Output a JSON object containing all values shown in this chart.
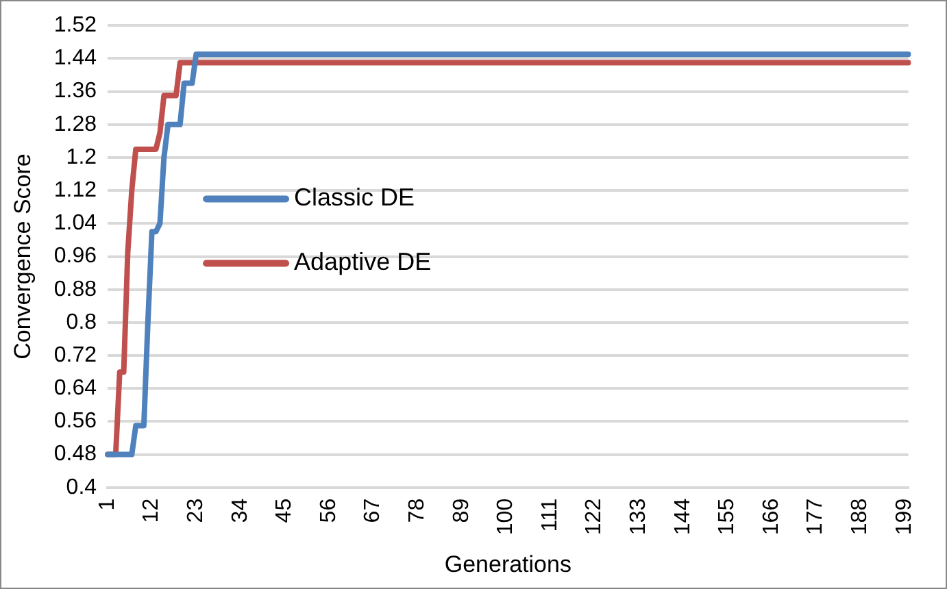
{
  "chart_data": {
    "type": "line",
    "xlabel": "Generations",
    "ylabel": "Convergence Score",
    "categories": [
      "1",
      null,
      null,
      null,
      null,
      null,
      null,
      null,
      null,
      null,
      null,
      "12",
      null,
      null,
      null,
      null,
      null,
      null,
      null,
      null,
      null,
      null,
      "23",
      null,
      null,
      null,
      null,
      null,
      null,
      null,
      null,
      null,
      null,
      "34",
      null,
      null,
      null,
      null,
      null,
      null,
      null,
      null,
      null,
      null,
      "45",
      null,
      null,
      null,
      null,
      null,
      null,
      null,
      null,
      null,
      null,
      "56",
      null,
      null,
      null,
      null,
      null,
      null,
      null,
      null,
      null,
      null,
      "67",
      null,
      null,
      null,
      null,
      null,
      null,
      null,
      null,
      null,
      null,
      "78",
      null,
      null,
      null,
      null,
      null,
      null,
      null,
      null,
      null,
      null,
      "89",
      null,
      null,
      null,
      null,
      null,
      null,
      null,
      null,
      null,
      null,
      "100",
      null,
      null,
      null,
      null,
      null,
      null,
      null,
      null,
      null,
      null,
      "111",
      null,
      null,
      null,
      null,
      null,
      null,
      null,
      null,
      null,
      null,
      "122",
      null,
      null,
      null,
      null,
      null,
      null,
      null,
      null,
      null,
      null,
      "133",
      null,
      null,
      null,
      null,
      null,
      null,
      null,
      null,
      null,
      null,
      "144",
      null,
      null,
      null,
      null,
      null,
      null,
      null,
      null,
      null,
      null,
      "155",
      null,
      null,
      null,
      null,
      null,
      null,
      null,
      null,
      null,
      null,
      "166",
      null,
      null,
      null,
      null,
      null,
      null,
      null,
      null,
      null,
      null,
      "177",
      null,
      null,
      null,
      null,
      null,
      null,
      null,
      null,
      null,
      null,
      "188",
      null,
      null,
      null,
      null,
      null,
      null,
      null,
      null,
      null,
      null,
      "199",
      null
    ],
    "series": [
      {
        "name": "Classic DE",
        "color": "#4f81bd",
        "values": [
          0.48,
          0.48,
          0.48,
          0.48,
          0.48,
          0.48,
          0.48,
          0.55,
          0.55,
          0.55,
          0.8,
          1.02,
          1.02,
          1.04,
          1.2,
          1.28,
          1.28,
          1.28,
          1.28,
          1.38,
          1.38,
          1.38,
          1.45,
          1.45,
          1.45,
          1.45,
          1.45,
          1.45,
          1.45,
          1.45,
          1.45,
          1.45,
          1.45,
          1.45,
          1.45,
          1.45,
          1.45,
          1.45,
          1.45,
          1.45,
          1.45,
          1.45,
          1.45,
          1.45,
          1.45,
          1.45,
          1.45,
          1.45,
          1.45,
          1.45,
          1.45,
          1.45,
          1.45,
          1.45,
          1.45,
          1.45,
          1.45,
          1.45,
          1.45,
          1.45,
          1.45,
          1.45,
          1.45,
          1.45,
          1.45,
          1.45,
          1.45,
          1.45,
          1.45,
          1.45,
          1.45,
          1.45,
          1.45,
          1.45,
          1.45,
          1.45,
          1.45,
          1.45,
          1.45,
          1.45,
          1.45,
          1.45,
          1.45,
          1.45,
          1.45,
          1.45,
          1.45,
          1.45,
          1.45,
          1.45,
          1.45,
          1.45,
          1.45,
          1.45,
          1.45,
          1.45,
          1.45,
          1.45,
          1.45,
          1.45,
          1.45,
          1.45,
          1.45,
          1.45,
          1.45,
          1.45,
          1.45,
          1.45,
          1.45,
          1.45,
          1.45,
          1.45,
          1.45,
          1.45,
          1.45,
          1.45,
          1.45,
          1.45,
          1.45,
          1.45,
          1.45,
          1.45,
          1.45,
          1.45,
          1.45,
          1.45,
          1.45,
          1.45,
          1.45,
          1.45,
          1.45,
          1.45,
          1.45,
          1.45,
          1.45,
          1.45,
          1.45,
          1.45,
          1.45,
          1.45,
          1.45,
          1.45,
          1.45,
          1.45,
          1.45,
          1.45,
          1.45,
          1.45,
          1.45,
          1.45,
          1.45,
          1.45,
          1.45,
          1.45,
          1.45,
          1.45,
          1.45,
          1.45,
          1.45,
          1.45,
          1.45,
          1.45,
          1.45,
          1.45,
          1.45,
          1.45,
          1.45,
          1.45,
          1.45,
          1.45,
          1.45,
          1.45,
          1.45,
          1.45,
          1.45,
          1.45,
          1.45,
          1.45,
          1.45,
          1.45,
          1.45,
          1.45,
          1.45,
          1.45,
          1.45,
          1.45,
          1.45,
          1.45,
          1.45,
          1.45,
          1.45,
          1.45,
          1.45,
          1.45,
          1.45,
          1.45,
          1.45,
          1.45,
          1.45,
          1.45
        ]
      },
      {
        "name": "Adaptive DE",
        "color": "#c0504d",
        "values": [
          0.48,
          0.48,
          0.48,
          0.68,
          0.68,
          0.97,
          1.12,
          1.22,
          1.22,
          1.22,
          1.22,
          1.22,
          1.22,
          1.26,
          1.35,
          1.35,
          1.35,
          1.35,
          1.43,
          1.43,
          1.43,
          1.43,
          1.43,
          1.43,
          1.43,
          1.43,
          1.43,
          1.43,
          1.43,
          1.43,
          1.43,
          1.43,
          1.43,
          1.43,
          1.43,
          1.43,
          1.43,
          1.43,
          1.43,
          1.43,
          1.43,
          1.43,
          1.43,
          1.43,
          1.43,
          1.43,
          1.43,
          1.43,
          1.43,
          1.43,
          1.43,
          1.43,
          1.43,
          1.43,
          1.43,
          1.43,
          1.43,
          1.43,
          1.43,
          1.43,
          1.43,
          1.43,
          1.43,
          1.43,
          1.43,
          1.43,
          1.43,
          1.43,
          1.43,
          1.43,
          1.43,
          1.43,
          1.43,
          1.43,
          1.43,
          1.43,
          1.43,
          1.43,
          1.43,
          1.43,
          1.43,
          1.43,
          1.43,
          1.43,
          1.43,
          1.43,
          1.43,
          1.43,
          1.43,
          1.43,
          1.43,
          1.43,
          1.43,
          1.43,
          1.43,
          1.43,
          1.43,
          1.43,
          1.43,
          1.43,
          1.43,
          1.43,
          1.43,
          1.43,
          1.43,
          1.43,
          1.43,
          1.43,
          1.43,
          1.43,
          1.43,
          1.43,
          1.43,
          1.43,
          1.43,
          1.43,
          1.43,
          1.43,
          1.43,
          1.43,
          1.43,
          1.43,
          1.43,
          1.43,
          1.43,
          1.43,
          1.43,
          1.43,
          1.43,
          1.43,
          1.43,
          1.43,
          1.43,
          1.43,
          1.43,
          1.43,
          1.43,
          1.43,
          1.43,
          1.43,
          1.43,
          1.43,
          1.43,
          1.43,
          1.43,
          1.43,
          1.43,
          1.43,
          1.43,
          1.43,
          1.43,
          1.43,
          1.43,
          1.43,
          1.43,
          1.43,
          1.43,
          1.43,
          1.43,
          1.43,
          1.43,
          1.43,
          1.43,
          1.43,
          1.43,
          1.43,
          1.43,
          1.43,
          1.43,
          1.43,
          1.43,
          1.43,
          1.43,
          1.43,
          1.43,
          1.43,
          1.43,
          1.43,
          1.43,
          1.43,
          1.43,
          1.43,
          1.43,
          1.43,
          1.43,
          1.43,
          1.43,
          1.43,
          1.43,
          1.43,
          1.43,
          1.43,
          1.43,
          1.43,
          1.43,
          1.43,
          1.43,
          1.43,
          1.43,
          1.43
        ]
      }
    ],
    "ylim": [
      0.4,
      1.52
    ],
    "yticks": [
      0.4,
      0.48,
      0.56,
      0.64,
      0.72,
      0.8,
      0.88,
      0.96,
      1.04,
      1.12,
      1.2,
      1.28,
      1.36,
      1.44,
      1.52
    ],
    "grid": "y",
    "legend": "left",
    "marker": "none",
    "line_style": "solid"
  }
}
